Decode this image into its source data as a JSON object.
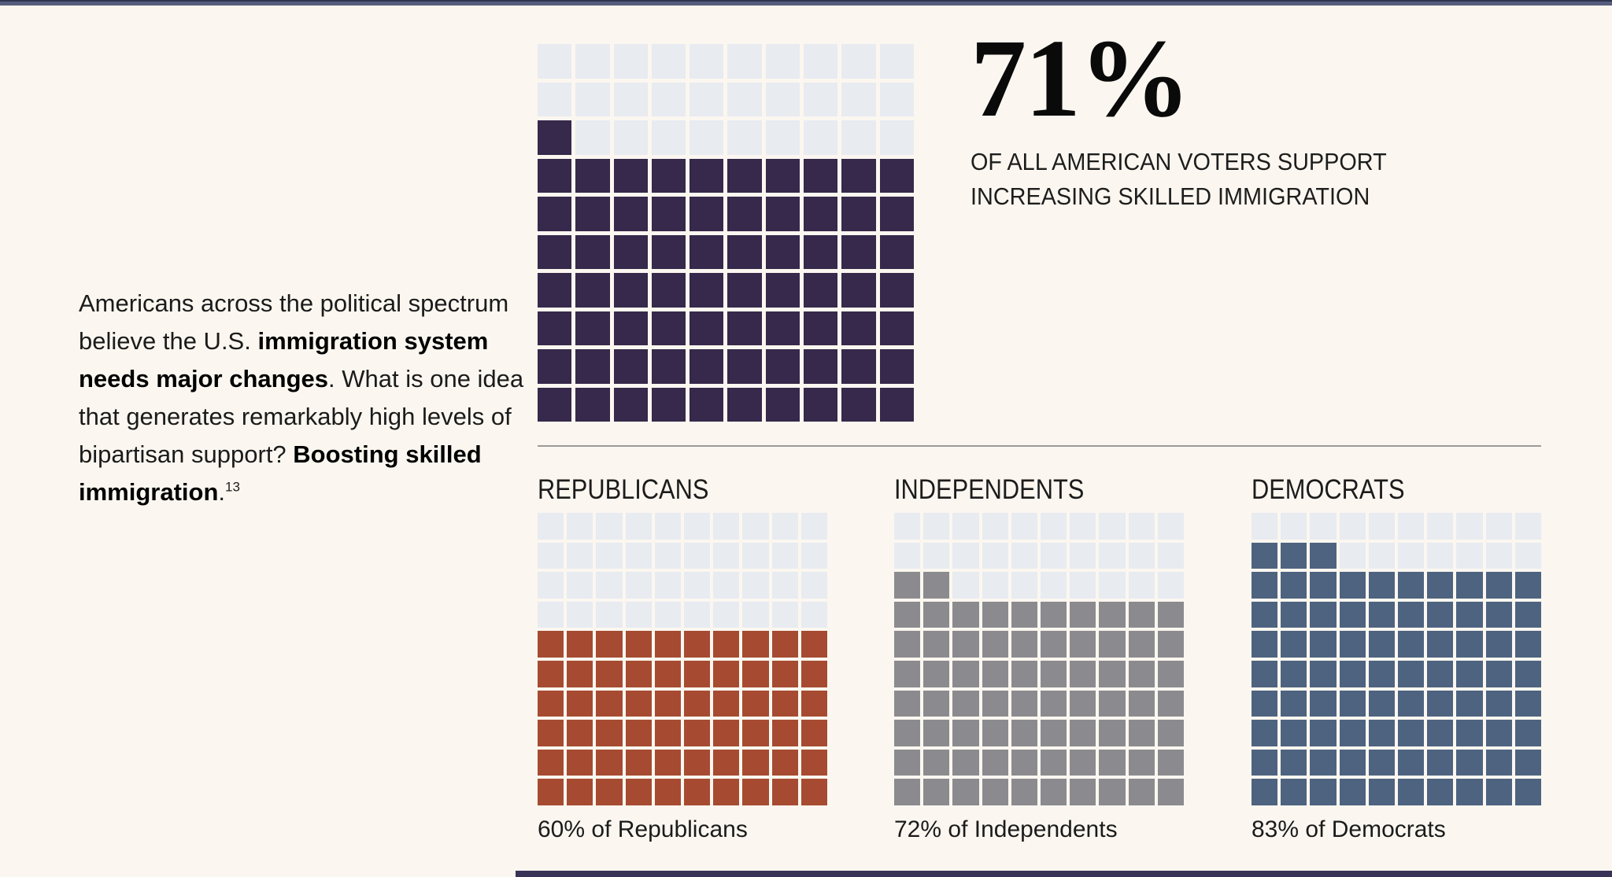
{
  "page": {
    "background": "#FBF7F0",
    "top_bar_color": "#575D7C",
    "top_bar_edge_color": "#2E3450",
    "bottom_bar_color": "#393357",
    "divider_color": "#9B9B9B"
  },
  "intro": {
    "segments": [
      {
        "text": "Americans across the political spectrum believe the U.S. ",
        "bold": false
      },
      {
        "text": "immigration system needs major changes",
        "bold": true
      },
      {
        "text": ". What is one idea that generates remarkably high levels of bipartisan support? ",
        "bold": false
      },
      {
        "text": "Boosting skilled immigration",
        "bold": true
      },
      {
        "text": ".",
        "bold": false
      }
    ],
    "footnote": "13"
  },
  "headline": {
    "stat": "71%",
    "description": "OF ALL AMERICAN VOTERS SUPPORT\nINCREASING SKILLED IMMIGRATION"
  },
  "chart_data": [
    {
      "type": "waffle",
      "name": "all-voters",
      "title": "71% of all American voters support increasing skilled immigration",
      "percent": 71,
      "grid": [
        10,
        10
      ],
      "fill_order": "bottom-up, partial row fills from left",
      "fill_color": "#36294B",
      "empty_color": "#E8EBF0"
    },
    {
      "type": "waffle",
      "name": "republicans",
      "title": "REPUBLICANS",
      "percent": 60,
      "grid": [
        10,
        10
      ],
      "caption": "60% of Republicans",
      "fill_color": "#A64B31",
      "empty_color": "#E8EBF0"
    },
    {
      "type": "waffle",
      "name": "independents",
      "title": "INDEPENDENTS",
      "percent": 72,
      "grid": [
        10,
        10
      ],
      "caption": "72% of Independents",
      "fill_color": "#8B8B8F",
      "empty_color": "#E8EBF0"
    },
    {
      "type": "waffle",
      "name": "democrats",
      "title": "DEMOCRATS",
      "percent": 83,
      "grid": [
        10,
        10
      ],
      "caption": "83% of Democrats",
      "fill_color": "#4E6380",
      "empty_color": "#E8EBF0"
    }
  ]
}
